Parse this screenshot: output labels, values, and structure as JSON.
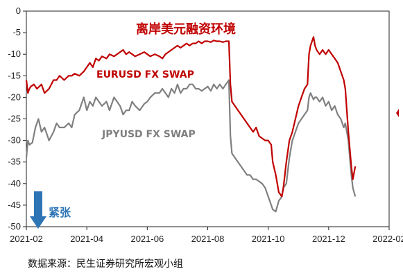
{
  "chart_data": {
    "type": "line",
    "title": "离岸美元融资环境",
    "xlabel": "",
    "ylabel": "",
    "ylim": [
      -50,
      0
    ],
    "yticks": [
      0,
      -5,
      -10,
      -15,
      -20,
      -25,
      -30,
      -35,
      -40,
      -45,
      -50
    ],
    "xticks": [
      "2021-02",
      "2021-04",
      "2021-06",
      "2021-08",
      "2021-10",
      "2021-12",
      "2022-02"
    ],
    "grid": false,
    "series": [
      {
        "name": "EURUSD FX SWAP",
        "color": "#c00000",
        "points": [
          [
            0.0,
            -16
          ],
          [
            0.05,
            -19
          ],
          [
            0.1,
            -18
          ],
          [
            0.15,
            -17.5
          ],
          [
            0.25,
            -17
          ],
          [
            0.35,
            -18
          ],
          [
            0.5,
            -17
          ],
          [
            0.6,
            -19
          ],
          [
            0.75,
            -18
          ],
          [
            0.9,
            -16
          ],
          [
            1.0,
            -16
          ],
          [
            1.1,
            -15
          ],
          [
            1.25,
            -16
          ],
          [
            1.4,
            -15
          ],
          [
            1.5,
            -15
          ],
          [
            1.6,
            -14.5
          ],
          [
            1.75,
            -15
          ],
          [
            1.9,
            -14
          ],
          [
            2.0,
            -13
          ],
          [
            2.1,
            -12
          ],
          [
            2.2,
            -13
          ],
          [
            2.3,
            -11
          ],
          [
            2.4,
            -11.5
          ],
          [
            2.5,
            -10.5
          ],
          [
            2.65,
            -11
          ],
          [
            2.75,
            -10
          ],
          [
            2.9,
            -10.5
          ],
          [
            3.0,
            -10
          ],
          [
            3.1,
            -9.5
          ],
          [
            3.2,
            -9
          ],
          [
            3.3,
            -10
          ],
          [
            3.4,
            -9.5
          ],
          [
            3.5,
            -10
          ],
          [
            3.6,
            -10.5
          ],
          [
            3.75,
            -10
          ],
          [
            3.9,
            -9.5
          ],
          [
            4.0,
            -10
          ],
          [
            4.1,
            -10.5
          ],
          [
            4.25,
            -10
          ],
          [
            4.4,
            -10.5
          ],
          [
            4.5,
            -11
          ],
          [
            4.6,
            -10
          ],
          [
            4.7,
            -9.5
          ],
          [
            4.8,
            -9
          ],
          [
            4.9,
            -8.5
          ],
          [
            5.0,
            -8
          ],
          [
            5.1,
            -8.5
          ],
          [
            5.2,
            -8
          ],
          [
            5.3,
            -7.5
          ],
          [
            5.4,
            -8
          ],
          [
            5.5,
            -7.5
          ],
          [
            5.6,
            -7.5
          ],
          [
            5.7,
            -7
          ],
          [
            5.8,
            -7.5
          ],
          [
            5.9,
            -7
          ],
          [
            6.0,
            -7
          ],
          [
            6.1,
            -7.2
          ],
          [
            6.2,
            -6.8
          ],
          [
            6.3,
            -7
          ],
          [
            6.4,
            -7
          ],
          [
            6.5,
            -7.2
          ],
          [
            6.6,
            -7
          ],
          [
            6.7,
            -7
          ],
          [
            6.75,
            -17
          ],
          [
            6.8,
            -21
          ],
          [
            6.9,
            -22
          ],
          [
            7.0,
            -23
          ],
          [
            7.1,
            -24
          ],
          [
            7.2,
            -25
          ],
          [
            7.3,
            -26
          ],
          [
            7.4,
            -27
          ],
          [
            7.5,
            -28
          ],
          [
            7.6,
            -27
          ],
          [
            7.7,
            -29
          ],
          [
            7.8,
            -29.5
          ],
          [
            7.9,
            -30
          ],
          [
            8.0,
            -30
          ],
          [
            8.1,
            -31
          ],
          [
            8.15,
            -35
          ],
          [
            8.25,
            -38
          ],
          [
            8.35,
            -42
          ],
          [
            8.45,
            -43
          ],
          [
            8.5,
            -41
          ],
          [
            8.6,
            -35
          ],
          [
            8.7,
            -30
          ],
          [
            8.8,
            -28
          ],
          [
            8.9,
            -25
          ],
          [
            9.0,
            -22
          ],
          [
            9.1,
            -20
          ],
          [
            9.2,
            -18
          ],
          [
            9.3,
            -17
          ],
          [
            9.35,
            -10
          ],
          [
            9.4,
            -8
          ],
          [
            9.5,
            -6
          ],
          [
            9.55,
            -8
          ],
          [
            9.6,
            -9
          ],
          [
            9.7,
            -10
          ],
          [
            9.8,
            -9
          ],
          [
            9.9,
            -10
          ],
          [
            10.0,
            -9
          ],
          [
            10.1,
            -10
          ],
          [
            10.2,
            -11
          ],
          [
            10.3,
            -12
          ],
          [
            10.4,
            -14
          ],
          [
            10.5,
            -16
          ],
          [
            10.55,
            -18
          ],
          [
            10.65,
            -28
          ],
          [
            10.75,
            -36
          ],
          [
            10.8,
            -39
          ],
          [
            10.88,
            -36
          ]
        ]
      },
      {
        "name": "JPYUSD FX SWAP",
        "color": "#808080",
        "points": [
          [
            0.0,
            -34
          ],
          [
            0.05,
            -30
          ],
          [
            0.1,
            -31
          ],
          [
            0.2,
            -30.5
          ],
          [
            0.3,
            -27
          ],
          [
            0.4,
            -25
          ],
          [
            0.5,
            -28
          ],
          [
            0.6,
            -27
          ],
          [
            0.75,
            -30
          ],
          [
            0.9,
            -28
          ],
          [
            1.0,
            -26
          ],
          [
            1.1,
            -27
          ],
          [
            1.25,
            -27
          ],
          [
            1.4,
            -26
          ],
          [
            1.5,
            -27
          ],
          [
            1.6,
            -24
          ],
          [
            1.75,
            -23
          ],
          [
            1.9,
            -20
          ],
          [
            2.0,
            -23
          ],
          [
            2.1,
            -21
          ],
          [
            2.2,
            -22
          ],
          [
            2.3,
            -20
          ],
          [
            2.4,
            -21
          ],
          [
            2.5,
            -22
          ],
          [
            2.65,
            -21
          ],
          [
            2.75,
            -23
          ],
          [
            2.9,
            -20
          ],
          [
            3.0,
            -21
          ],
          [
            3.1,
            -22
          ],
          [
            3.2,
            -24
          ],
          [
            3.3,
            -23
          ],
          [
            3.4,
            -23
          ],
          [
            3.5,
            -21
          ],
          [
            3.6,
            -22
          ],
          [
            3.75,
            -23
          ],
          [
            3.9,
            -21.5
          ],
          [
            4.0,
            -21
          ],
          [
            4.1,
            -20
          ],
          [
            4.25,
            -19
          ],
          [
            4.4,
            -19
          ],
          [
            4.5,
            -18
          ],
          [
            4.6,
            -19
          ],
          [
            4.7,
            -20
          ],
          [
            4.8,
            -18
          ],
          [
            4.9,
            -19
          ],
          [
            5.0,
            -17
          ],
          [
            5.1,
            -19
          ],
          [
            5.2,
            -18
          ],
          [
            5.3,
            -18
          ],
          [
            5.4,
            -17
          ],
          [
            5.5,
            -17
          ],
          [
            5.6,
            -18
          ],
          [
            5.7,
            -18
          ],
          [
            5.8,
            -18.5
          ],
          [
            5.9,
            -18
          ],
          [
            6.0,
            -17.5
          ],
          [
            6.1,
            -18.5
          ],
          [
            6.2,
            -17
          ],
          [
            6.3,
            -18
          ],
          [
            6.4,
            -17
          ],
          [
            6.5,
            -18
          ],
          [
            6.6,
            -17
          ],
          [
            6.7,
            -16
          ],
          [
            6.75,
            -29
          ],
          [
            6.8,
            -33
          ],
          [
            6.9,
            -34
          ],
          [
            7.0,
            -35
          ],
          [
            7.1,
            -36
          ],
          [
            7.2,
            -37
          ],
          [
            7.3,
            -38
          ],
          [
            7.4,
            -38
          ],
          [
            7.5,
            -39
          ],
          [
            7.6,
            -39
          ],
          [
            7.7,
            -39.5
          ],
          [
            7.8,
            -40
          ],
          [
            7.9,
            -41
          ],
          [
            8.0,
            -43
          ],
          [
            8.1,
            -45
          ],
          [
            8.15,
            -46
          ],
          [
            8.25,
            -46.5
          ],
          [
            8.35,
            -44
          ],
          [
            8.45,
            -43
          ],
          [
            8.5,
            -41
          ],
          [
            8.6,
            -40
          ],
          [
            8.7,
            -34
          ],
          [
            8.8,
            -30
          ],
          [
            8.9,
            -28
          ],
          [
            9.0,
            -26
          ],
          [
            9.1,
            -25
          ],
          [
            9.2,
            -24
          ],
          [
            9.3,
            -23
          ],
          [
            9.35,
            -20
          ],
          [
            9.4,
            -19
          ],
          [
            9.5,
            -20.5
          ],
          [
            9.55,
            -20
          ],
          [
            9.6,
            -20
          ],
          [
            9.7,
            -21
          ],
          [
            9.8,
            -20
          ],
          [
            9.9,
            -22
          ],
          [
            10.0,
            -21
          ],
          [
            10.1,
            -23
          ],
          [
            10.2,
            -22
          ],
          [
            10.3,
            -24
          ],
          [
            10.4,
            -25
          ],
          [
            10.5,
            -27
          ],
          [
            10.55,
            -26
          ],
          [
            10.65,
            -30
          ],
          [
            10.75,
            -38
          ],
          [
            10.8,
            -41
          ],
          [
            10.88,
            -43
          ]
        ]
      }
    ],
    "labels": {
      "eur": "EURUSD FX SWAP",
      "jpy": "JPYUSD FX SWAP",
      "arrow": "紧张"
    }
  },
  "source": "数据来源：民生证券研究所宏观小组"
}
